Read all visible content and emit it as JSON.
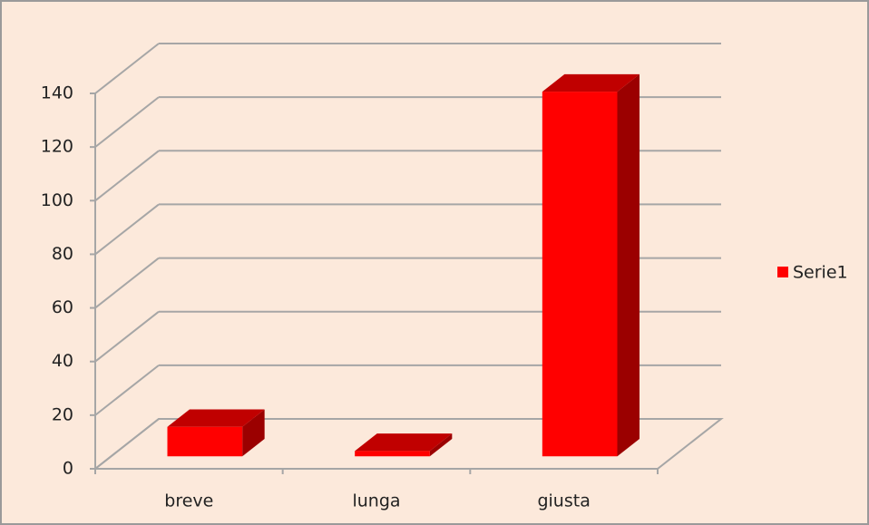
{
  "chart_data": {
    "type": "bar3d",
    "categories": [
      "breve",
      "lunga",
      "giusta"
    ],
    "series": [
      {
        "name": "Serie1",
        "color": "#ff0000",
        "values": [
          11,
          2,
          136
        ]
      }
    ],
    "ylim": [
      0,
      140
    ],
    "yticks": [
      0,
      20,
      40,
      60,
      80,
      100,
      120,
      140
    ],
    "grid": true,
    "legend": "right"
  }
}
